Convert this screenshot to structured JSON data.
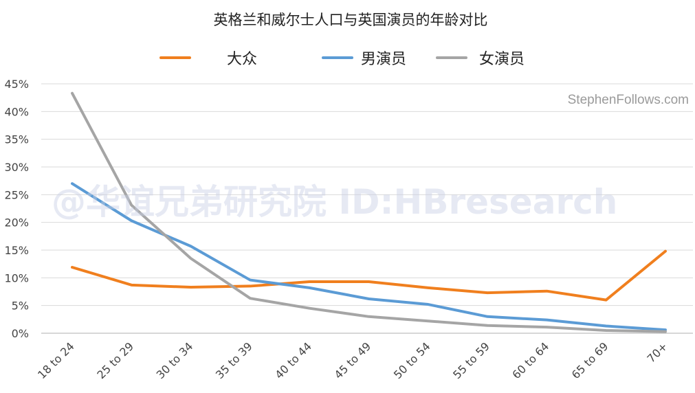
{
  "chart_data": {
    "type": "line",
    "title": "英格兰和威尔士人口与英国演员的年龄对比",
    "categories": [
      "18 to 24",
      "25 to 29",
      "30 to 34",
      "35 to 39",
      "40 to 44",
      "45 to 49",
      "50 to 54",
      "55 to 59",
      "60 to 64",
      "65 to 69",
      "70+"
    ],
    "series": [
      {
        "name": "大众",
        "color": "#f07f1e",
        "values": [
          11.9,
          8.7,
          8.3,
          8.5,
          9.3,
          9.3,
          8.2,
          7.3,
          7.6,
          6.0,
          14.8
        ]
      },
      {
        "name": "男演员",
        "color": "#5b9bd5",
        "values": [
          27.0,
          20.3,
          15.7,
          9.6,
          8.2,
          6.2,
          5.2,
          3.0,
          2.4,
          1.3,
          0.6
        ]
      },
      {
        "name": "女演员",
        "color": "#a5a5a5",
        "values": [
          43.3,
          23.1,
          13.5,
          6.3,
          4.5,
          3.0,
          2.2,
          1.4,
          1.1,
          0.5,
          0.3
        ]
      }
    ],
    "ylim": [
      0,
      45
    ],
    "yticks": [
      "0%",
      "5%",
      "10%",
      "15%",
      "20%",
      "25%",
      "30%",
      "35%",
      "40%",
      "45%"
    ],
    "grid": true,
    "legend_position": "top"
  },
  "credit": "StephenFollows.com",
  "watermark": "@华谊兄弟研究院 ID:HBresearch"
}
